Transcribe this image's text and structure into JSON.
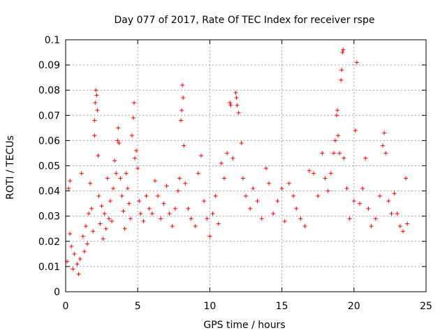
{
  "chart_data": {
    "type": "scatter",
    "title": "Day 077 of 2017, Rate Of TEC Index for receiver rspe",
    "xlabel": "GPS time / hours",
    "ylabel": "ROTI / TECUs",
    "xlim": [
      0,
      25
    ],
    "ylim": [
      0,
      0.1
    ],
    "xticks": [
      0,
      5,
      10,
      15,
      20,
      25
    ],
    "yticks": [
      0,
      0.01,
      0.02,
      0.03,
      0.04,
      0.05,
      0.06,
      0.07,
      0.08,
      0.09,
      0.1
    ],
    "grid": true,
    "marker": "+",
    "color": "#ff0000",
    "series": [
      {
        "values_description": "ROTI samples",
        "points": [
          [
            0.1,
            0.012
          ],
          [
            0.2,
            0.041
          ],
          [
            0.3,
            0.044
          ],
          [
            0.3,
            0.023
          ],
          [
            0.4,
            0.018
          ],
          [
            0.5,
            0.009
          ],
          [
            0.6,
            0.015
          ],
          [
            0.8,
            0.011
          ],
          [
            0.9,
            0.007
          ],
          [
            1.0,
            0.013
          ],
          [
            1.1,
            0.047
          ],
          [
            1.2,
            0.022
          ],
          [
            1.3,
            0.016
          ],
          [
            1.4,
            0.026
          ],
          [
            1.5,
            0.019
          ],
          [
            1.6,
            0.031
          ],
          [
            1.7,
            0.043
          ],
          [
            1.8,
            0.033
          ],
          [
            1.9,
            0.024
          ],
          [
            2.0,
            0.062
          ],
          [
            2.0,
            0.068
          ],
          [
            2.05,
            0.075
          ],
          [
            2.1,
            0.08
          ],
          [
            2.15,
            0.078
          ],
          [
            2.2,
            0.072
          ],
          [
            2.25,
            0.054
          ],
          [
            2.3,
            0.038
          ],
          [
            2.4,
            0.027
          ],
          [
            2.5,
            0.034
          ],
          [
            2.6,
            0.021
          ],
          [
            2.7,
            0.031
          ],
          [
            2.8,
            0.025
          ],
          [
            2.9,
            0.045
          ],
          [
            3.0,
            0.029
          ],
          [
            3.1,
            0.036
          ],
          [
            3.2,
            0.028
          ],
          [
            3.3,
            0.041
          ],
          [
            3.4,
            0.052
          ],
          [
            3.5,
            0.047
          ],
          [
            3.6,
            0.06
          ],
          [
            3.65,
            0.065
          ],
          [
            3.7,
            0.059
          ],
          [
            3.8,
            0.045
          ],
          [
            3.9,
            0.038
          ],
          [
            4.0,
            0.032
          ],
          [
            4.1,
            0.025
          ],
          [
            4.2,
            0.047
          ],
          [
            4.3,
            0.041
          ],
          [
            4.4,
            0.035
          ],
          [
            4.5,
            0.029
          ],
          [
            4.6,
            0.062
          ],
          [
            4.7,
            0.069
          ],
          [
            4.75,
            0.075
          ],
          [
            4.8,
            0.053
          ],
          [
            4.9,
            0.056
          ],
          [
            5.0,
            0.049
          ],
          [
            5.1,
            0.036
          ],
          [
            5.2,
            0.031
          ],
          [
            5.4,
            0.028
          ],
          [
            5.6,
            0.038
          ],
          [
            5.8,
            0.033
          ],
          [
            6.0,
            0.031
          ],
          [
            6.2,
            0.044
          ],
          [
            6.4,
            0.038
          ],
          [
            6.6,
            0.029
          ],
          [
            6.8,
            0.035
          ],
          [
            7.0,
            0.042
          ],
          [
            7.2,
            0.031
          ],
          [
            7.4,
            0.026
          ],
          [
            7.6,
            0.033
          ],
          [
            7.8,
            0.04
          ],
          [
            7.9,
            0.045
          ],
          [
            8.0,
            0.068
          ],
          [
            8.05,
            0.072
          ],
          [
            8.1,
            0.082
          ],
          [
            8.15,
            0.077
          ],
          [
            8.2,
            0.058
          ],
          [
            8.3,
            0.043
          ],
          [
            8.5,
            0.033
          ],
          [
            8.7,
            0.029
          ],
          [
            9.0,
            0.026
          ],
          [
            9.2,
            0.047
          ],
          [
            9.4,
            0.054
          ],
          [
            9.6,
            0.036
          ],
          [
            9.8,
            0.029
          ],
          [
            10.0,
            0.022
          ],
          [
            10.2,
            0.031
          ],
          [
            10.4,
            0.038
          ],
          [
            10.6,
            0.027
          ],
          [
            10.8,
            0.051
          ],
          [
            11.0,
            0.045
          ],
          [
            11.2,
            0.055
          ],
          [
            11.4,
            0.075
          ],
          [
            11.45,
            0.074
          ],
          [
            11.6,
            0.053
          ],
          [
            11.8,
            0.079
          ],
          [
            11.85,
            0.077
          ],
          [
            11.9,
            0.074
          ],
          [
            12.0,
            0.071
          ],
          [
            12.2,
            0.059
          ],
          [
            12.3,
            0.045
          ],
          [
            12.5,
            0.038
          ],
          [
            12.8,
            0.033
          ],
          [
            13.0,
            0.041
          ],
          [
            13.3,
            0.036
          ],
          [
            13.6,
            0.029
          ],
          [
            13.9,
            0.049
          ],
          [
            14.1,
            0.043
          ],
          [
            14.4,
            0.031
          ],
          [
            14.7,
            0.036
          ],
          [
            15.0,
            0.041
          ],
          [
            15.2,
            0.028
          ],
          [
            15.5,
            0.043
          ],
          [
            15.8,
            0.038
          ],
          [
            16.0,
            0.033
          ],
          [
            16.3,
            0.029
          ],
          [
            16.6,
            0.026
          ],
          [
            16.9,
            0.048
          ],
          [
            17.2,
            0.047
          ],
          [
            17.5,
            0.038
          ],
          [
            17.8,
            0.055
          ],
          [
            18.0,
            0.045
          ],
          [
            18.2,
            0.04
          ],
          [
            18.4,
            0.047
          ],
          [
            18.6,
            0.055
          ],
          [
            18.7,
            0.06
          ],
          [
            18.8,
            0.07
          ],
          [
            18.85,
            0.072
          ],
          [
            18.9,
            0.062
          ],
          [
            19.0,
            0.055
          ],
          [
            19.1,
            0.084
          ],
          [
            19.15,
            0.088
          ],
          [
            19.2,
            0.095
          ],
          [
            19.25,
            0.096
          ],
          [
            19.3,
            0.053
          ],
          [
            19.5,
            0.041
          ],
          [
            19.7,
            0.029
          ],
          [
            20.0,
            0.036
          ],
          [
            20.1,
            0.064
          ],
          [
            20.2,
            0.091
          ],
          [
            20.4,
            0.035
          ],
          [
            20.6,
            0.041
          ],
          [
            20.8,
            0.053
          ],
          [
            21.0,
            0.033
          ],
          [
            21.2,
            0.026
          ],
          [
            21.5,
            0.029
          ],
          [
            21.8,
            0.038
          ],
          [
            22.0,
            0.058
          ],
          [
            22.1,
            0.063
          ],
          [
            22.2,
            0.055
          ],
          [
            22.4,
            0.036
          ],
          [
            22.6,
            0.031
          ],
          [
            22.8,
            0.039
          ],
          [
            23.0,
            0.031
          ],
          [
            23.2,
            0.026
          ],
          [
            23.4,
            0.024
          ],
          [
            23.6,
            0.045
          ],
          [
            23.7,
            0.027
          ]
        ]
      }
    ]
  }
}
